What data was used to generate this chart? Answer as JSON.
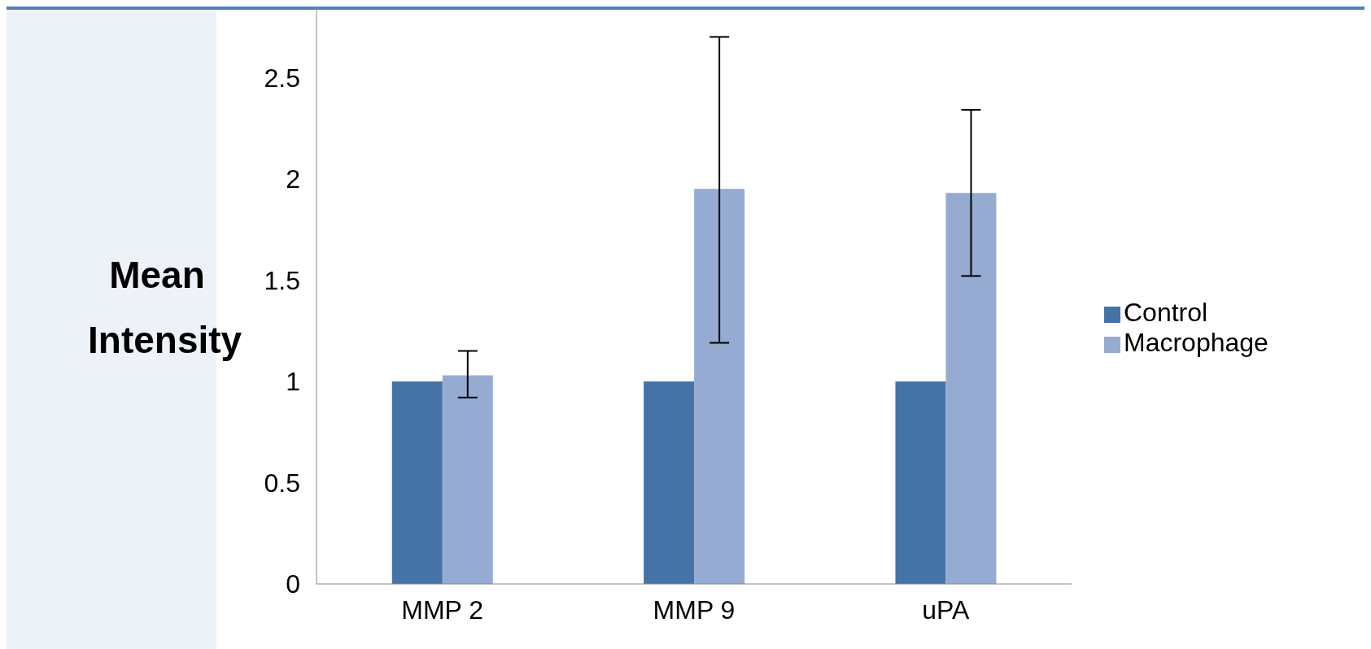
{
  "chart_data": {
    "type": "bar",
    "ylabel": "Mean Intensity",
    "categories": [
      "MMP 2",
      "MMP 9",
      "uPA"
    ],
    "series": [
      {
        "name": "Control",
        "color": "#4673a7",
        "values": [
          1,
          1,
          1
        ]
      },
      {
        "name": "Macrophage",
        "color": "#95abd2",
        "values": [
          1.03,
          1.95,
          1.93
        ],
        "errors": [
          [
            0.92,
            1.15
          ],
          [
            1.19,
            2.7
          ],
          [
            1.52,
            2.34
          ]
        ]
      }
    ],
    "ylim": [
      0,
      2.85
    ],
    "yticks": [
      0,
      0.5,
      1,
      1.5,
      2,
      2.5
    ],
    "grid": false,
    "legend": "right"
  }
}
